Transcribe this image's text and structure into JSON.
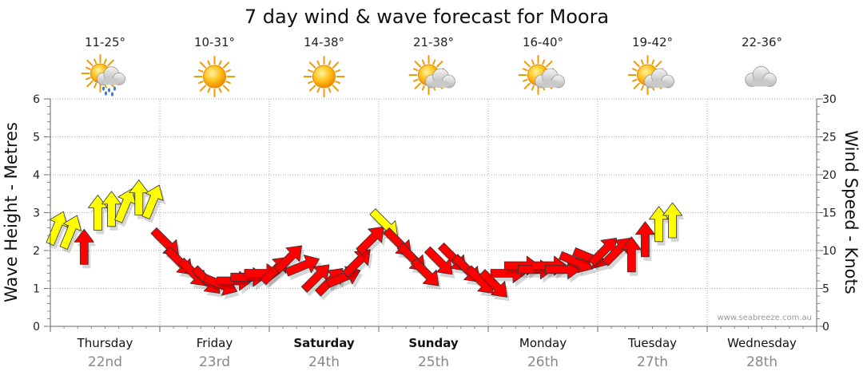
{
  "chart_data": {
    "type": "line",
    "title": "7 day wind & wave forecast for Moora",
    "ylabel_left": "Wave Height - Metres",
    "ylabel_right": "Wind Speed - Knots",
    "ylim_left": [
      0,
      6
    ],
    "ylim_right": [
      0,
      30
    ],
    "yticks_left": [
      "0",
      "1",
      "2",
      "3",
      "4",
      "5",
      "6"
    ],
    "yticks_right": [
      "0",
      "5",
      "10",
      "15",
      "20",
      "25",
      "30"
    ],
    "grid": true,
    "watermark": "www.seabreeze.com.au",
    "days": [
      {
        "name": "Thursday",
        "date": "22nd",
        "temp": "11-25°",
        "weather": "sun-cloud-rain-icon",
        "bold": false
      },
      {
        "name": "Friday",
        "date": "23rd",
        "temp": "10-31°",
        "weather": "sun-icon",
        "bold": false
      },
      {
        "name": "Saturday",
        "date": "24th",
        "temp": "14-38°",
        "weather": "sun-icon",
        "bold": true
      },
      {
        "name": "Sunday",
        "date": "25th",
        "temp": "21-38°",
        "weather": "sun-cloud-icon",
        "bold": true
      },
      {
        "name": "Monday",
        "date": "26th",
        "temp": "16-40°",
        "weather": "sun-cloud-icon",
        "bold": false
      },
      {
        "name": "Tuesday",
        "date": "27th",
        "temp": "19-42°",
        "weather": "sun-cloud-icon",
        "bold": false
      },
      {
        "name": "Wednesday",
        "date": "28th",
        "temp": "22-36°",
        "weather": "cloud-icon",
        "bold": false
      }
    ],
    "series": [
      {
        "name": "wind",
        "unit": "knots",
        "colors": {
          "light": "#ffff00",
          "strong": "#ff0000"
        },
        "interval_hours": 3,
        "speed": [
          13.0,
          12.5,
          10.5,
          15.0,
          15.5,
          16.0,
          17.0,
          16.5,
          11.0,
          8.5,
          7.0,
          6.0,
          5.5,
          6.0,
          6.5,
          7.0,
          7.5,
          9.0,
          8.0,
          6.5,
          6.0,
          6.5,
          8.5,
          11.5,
          13.5,
          11.0,
          9.0,
          7.0,
          8.5,
          9.0,
          7.5,
          6.0,
          5.5,
          7.0,
          8.0,
          7.5,
          8.0,
          7.5,
          8.5,
          9.0,
          10.0,
          10.0,
          9.5,
          11.5,
          13.5,
          14.0
        ],
        "direction": [
          "SSW",
          "SSW",
          "S",
          "S",
          "S",
          "SSW",
          "S",
          "SSW",
          "NW",
          "NW",
          "NW",
          "NW",
          "WNW",
          "W",
          "W",
          "W",
          "SW",
          "SW",
          "WSW",
          "SW",
          "SW",
          "WSW",
          "SW",
          "SW",
          "NW",
          "NW",
          "NW",
          "NW",
          "NW",
          "NW",
          "NW",
          "NW",
          "NW",
          "W",
          "W",
          "W",
          "W",
          "W",
          "WNW",
          "WNW",
          "SW",
          "SW",
          "S",
          "S",
          "S",
          "S"
        ]
      }
    ]
  }
}
